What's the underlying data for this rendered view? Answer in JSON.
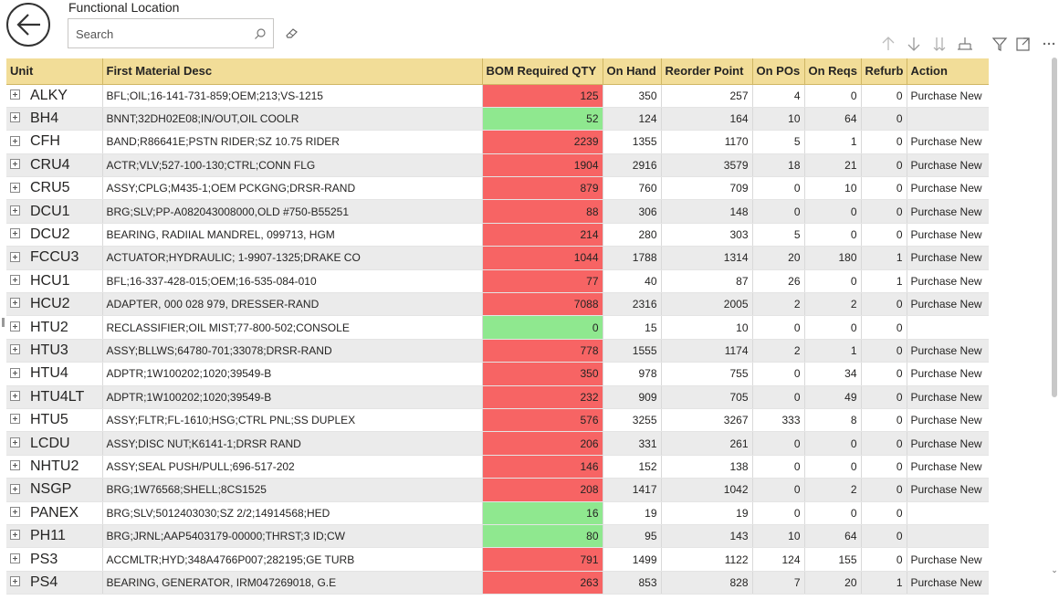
{
  "header": {
    "title": "Functional Location",
    "search_placeholder": "Search"
  },
  "toolbar": {
    "icons": [
      "drill-up-icon",
      "drill-down-icon",
      "expand-all-down-icon",
      "expand-hierarchy-icon",
      "filter-icon",
      "focus-mode-icon",
      "more-options-icon"
    ]
  },
  "table": {
    "columns": [
      "Unit",
      "First Material Desc",
      "BOM Required QTY",
      "On Hand",
      "Reorder Point",
      "On POs",
      "On Reqs",
      "Refurb",
      "Action"
    ],
    "rows": [
      {
        "unit": "ALKY",
        "desc": "BFL;OIL;16-141-731-859;OEM;213;VS-1215",
        "bom": "125",
        "bom_status": "red",
        "on_hand": "350",
        "reorder": "257",
        "on_pos": "4",
        "on_reqs": "0",
        "refurb": "0",
        "action": "Purchase New"
      },
      {
        "unit": "BH4",
        "desc": "BNNT;32DH02E08;IN/OUT,OIL COOLR",
        "bom": "52",
        "bom_status": "green",
        "on_hand": "124",
        "reorder": "164",
        "on_pos": "10",
        "on_reqs": "64",
        "refurb": "0",
        "action": ""
      },
      {
        "unit": "CFH",
        "desc": "BAND;R86641E;PSTN RIDER;SZ 10.75 RIDER",
        "bom": "2239",
        "bom_status": "red",
        "on_hand": "1355",
        "reorder": "1170",
        "on_pos": "5",
        "on_reqs": "1",
        "refurb": "0",
        "action": "Purchase New"
      },
      {
        "unit": "CRU4",
        "desc": "ACTR;VLV;527-100-130;CTRL;CONN FLG",
        "bom": "1904",
        "bom_status": "red",
        "on_hand": "2916",
        "reorder": "3579",
        "on_pos": "18",
        "on_reqs": "21",
        "refurb": "0",
        "action": "Purchase New"
      },
      {
        "unit": "CRU5",
        "desc": "ASSY;CPLG;M435-1;OEM PCKGNG;DRSR-RAND",
        "bom": "879",
        "bom_status": "red",
        "on_hand": "760",
        "reorder": "709",
        "on_pos": "0",
        "on_reqs": "10",
        "refurb": "0",
        "action": "Purchase New"
      },
      {
        "unit": "DCU1",
        "desc": "BRG;SLV;PP-A082043008000,OLD #750-B55251",
        "bom": "88",
        "bom_status": "red",
        "on_hand": "306",
        "reorder": "148",
        "on_pos": "0",
        "on_reqs": "0",
        "refurb": "0",
        "action": "Purchase New"
      },
      {
        "unit": "DCU2",
        "desc": "BEARING, RADIIAL MANDREL, 099713, HGM",
        "bom": "214",
        "bom_status": "red",
        "on_hand": "280",
        "reorder": "303",
        "on_pos": "5",
        "on_reqs": "0",
        "refurb": "0",
        "action": "Purchase New"
      },
      {
        "unit": "FCCU3",
        "desc": "ACTUATOR;HYDRAULIC; 1-9907-1325;DRAKE CO",
        "bom": "1044",
        "bom_status": "red",
        "on_hand": "1788",
        "reorder": "1314",
        "on_pos": "20",
        "on_reqs": "180",
        "refurb": "1",
        "action": "Purchase New"
      },
      {
        "unit": "HCU1",
        "desc": "BFL;16-337-428-015;OEM;16-535-084-010",
        "bom": "77",
        "bom_status": "red",
        "on_hand": "40",
        "reorder": "87",
        "on_pos": "26",
        "on_reqs": "0",
        "refurb": "1",
        "action": "Purchase New"
      },
      {
        "unit": "HCU2",
        "desc": "ADAPTER, 000 028 979, DRESSER-RAND",
        "bom": "7088",
        "bom_status": "red",
        "on_hand": "2316",
        "reorder": "2005",
        "on_pos": "2",
        "on_reqs": "2",
        "refurb": "0",
        "action": "Purchase New"
      },
      {
        "unit": "HTU2",
        "desc": "RECLASSIFIER;OIL MIST;77-800-502;CONSOLE",
        "bom": "0",
        "bom_status": "green",
        "on_hand": "15",
        "reorder": "10",
        "on_pos": "0",
        "on_reqs": "0",
        "refurb": "0",
        "action": ""
      },
      {
        "unit": "HTU3",
        "desc": "ASSY;BLLWS;64780-701;33078;DRSR-RAND",
        "bom": "778",
        "bom_status": "red",
        "on_hand": "1555",
        "reorder": "1174",
        "on_pos": "2",
        "on_reqs": "1",
        "refurb": "0",
        "action": "Purchase New"
      },
      {
        "unit": "HTU4",
        "desc": "ADPTR;1W100202;1020;39549-B",
        "bom": "350",
        "bom_status": "red",
        "on_hand": "978",
        "reorder": "755",
        "on_pos": "0",
        "on_reqs": "34",
        "refurb": "0",
        "action": "Purchase New"
      },
      {
        "unit": "HTU4LT",
        "desc": "ADPTR;1W100202;1020;39549-B",
        "bom": "232",
        "bom_status": "red",
        "on_hand": "909",
        "reorder": "705",
        "on_pos": "0",
        "on_reqs": "49",
        "refurb": "0",
        "action": "Purchase New"
      },
      {
        "unit": "HTU5",
        "desc": "ASSY;FLTR;FL-1610;HSG;CTRL PNL;SS DUPLEX",
        "bom": "576",
        "bom_status": "red",
        "on_hand": "3255",
        "reorder": "3267",
        "on_pos": "333",
        "on_reqs": "8",
        "refurb": "0",
        "action": "Purchase New"
      },
      {
        "unit": "LCDU",
        "desc": "ASSY;DISC NUT;K6141-1;DRSR RAND",
        "bom": "206",
        "bom_status": "red",
        "on_hand": "331",
        "reorder": "261",
        "on_pos": "0",
        "on_reqs": "0",
        "refurb": "0",
        "action": "Purchase New"
      },
      {
        "unit": "NHTU2",
        "desc": "ASSY;SEAL PUSH/PULL;696-517-202",
        "bom": "146",
        "bom_status": "red",
        "on_hand": "152",
        "reorder": "138",
        "on_pos": "0",
        "on_reqs": "0",
        "refurb": "0",
        "action": "Purchase New"
      },
      {
        "unit": "NSGP",
        "desc": "BRG;1W76568;SHELL;8CS1525",
        "bom": "208",
        "bom_status": "red",
        "on_hand": "1417",
        "reorder": "1042",
        "on_pos": "0",
        "on_reqs": "2",
        "refurb": "0",
        "action": "Purchase New"
      },
      {
        "unit": "PANEX",
        "desc": "BRG;SLV;5012403030;SZ 2/2;14914568;HED",
        "bom": "16",
        "bom_status": "green",
        "on_hand": "19",
        "reorder": "19",
        "on_pos": "0",
        "on_reqs": "0",
        "refurb": "0",
        "action": ""
      },
      {
        "unit": "PH11",
        "desc": "BRG;JRNL;AAP5403179-00000;THRST;3 ID;CW",
        "bom": "80",
        "bom_status": "green",
        "on_hand": "95",
        "reorder": "143",
        "on_pos": "10",
        "on_reqs": "64",
        "refurb": "0",
        "action": ""
      },
      {
        "unit": "PS3",
        "desc": "ACCMLTR;HYD;348A4766P007;282195;GE TURB",
        "bom": "791",
        "bom_status": "red",
        "on_hand": "1499",
        "reorder": "1122",
        "on_pos": "124",
        "on_reqs": "155",
        "refurb": "0",
        "action": "Purchase New"
      },
      {
        "unit": "PS4",
        "desc": "BEARING, GENERATOR, IRM047269018, G.E",
        "bom": "263",
        "bom_status": "red",
        "on_hand": "853",
        "reorder": "828",
        "on_pos": "7",
        "on_reqs": "20",
        "refurb": "1",
        "action": "Purchase New"
      }
    ]
  },
  "colors": {
    "header_bg": "#f2dd98",
    "bom_red": "#f76464",
    "bom_green": "#8fe88f",
    "alt_row": "#ebebeb"
  }
}
